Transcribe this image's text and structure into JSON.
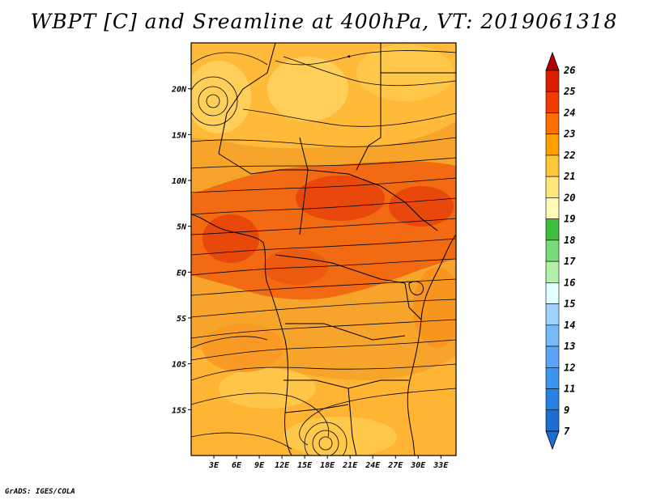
{
  "title": "WBPT [C] and Sreamline at 400hPa, VT: 2019061318",
  "credit": "GrADS: IGES/COLA",
  "map": {
    "lon_range": [
      0,
      35
    ],
    "lat_range": [
      -20,
      25
    ],
    "lat_ticks": [
      {
        "value": 20,
        "label": "20N"
      },
      {
        "value": 15,
        "label": "15N"
      },
      {
        "value": 10,
        "label": "10N"
      },
      {
        "value": 5,
        "label": "5N"
      },
      {
        "value": 0,
        "label": "EQ"
      },
      {
        "value": -5,
        "label": "5S"
      },
      {
        "value": -10,
        "label": "10S"
      },
      {
        "value": -15,
        "label": "15S"
      }
    ],
    "lon_ticks": [
      {
        "value": 3,
        "label": "3E"
      },
      {
        "value": 6,
        "label": "6E"
      },
      {
        "value": 9,
        "label": "9E"
      },
      {
        "value": 12,
        "label": "12E"
      },
      {
        "value": 15,
        "label": "15E"
      },
      {
        "value": 18,
        "label": "18E"
      },
      {
        "value": 21,
        "label": "21E"
      },
      {
        "value": 24,
        "label": "24E"
      },
      {
        "value": 27,
        "label": "27E"
      },
      {
        "value": 30,
        "label": "30E"
      },
      {
        "value": 33,
        "label": "33E"
      }
    ]
  },
  "colorbar": {
    "levels": [
      {
        "label": "7",
        "color": "#1e6ed2"
      },
      {
        "label": "9",
        "color": "#2882e6"
      },
      {
        "label": "11",
        "color": "#3c96f0"
      },
      {
        "label": "12",
        "color": "#5aa5f5"
      },
      {
        "label": "13",
        "color": "#78b9fa"
      },
      {
        "label": "14",
        "color": "#a0d2ff"
      },
      {
        "label": "15",
        "color": "#e1ffff"
      },
      {
        "label": "16",
        "color": "#b4f0aa"
      },
      {
        "label": "17",
        "color": "#78dc78"
      },
      {
        "label": "18",
        "color": "#3cbe3c"
      },
      {
        "label": "19",
        "color": "#fffab4"
      },
      {
        "label": "20",
        "color": "#ffe678"
      },
      {
        "label": "21",
        "color": "#ffc83c"
      },
      {
        "label": "22",
        "color": "#ffa000"
      },
      {
        "label": "23",
        "color": "#ff6e00"
      },
      {
        "label": "24",
        "color": "#f03c00"
      },
      {
        "label": "25",
        "color": "#dc1e00"
      },
      {
        "label": "26",
        "color": "#b40000"
      }
    ]
  }
}
